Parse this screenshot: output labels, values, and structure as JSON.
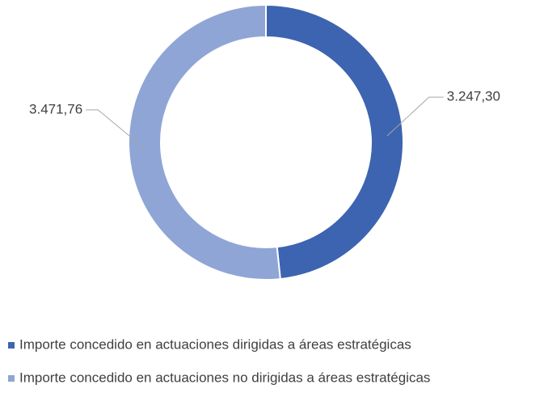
{
  "chart_data": {
    "type": "donut",
    "categories": [
      "Importe concedido en actuaciones dirigidas a áreas estratégicas",
      "Importe concedido en actuaciones no dirigidas a áreas estratégicas"
    ],
    "values": [
      3247.3,
      3471.76
    ],
    "value_labels": [
      "3.247,30",
      "3.471,76"
    ],
    "colors": [
      "#3d64b0",
      "#8fa5d6"
    ],
    "legend": "bottom"
  }
}
